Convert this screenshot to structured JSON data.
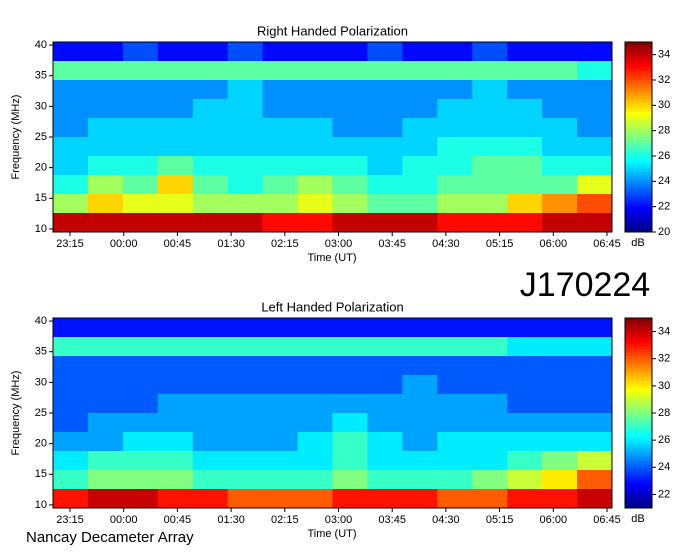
{
  "header": {
    "code": "J170224",
    "footer": "Nancay Decameter Array"
  },
  "chart_data": [
    {
      "type": "heatmap",
      "title": "Right Handed Polarization",
      "xlabel": "Time (UT)",
      "ylabel": "Frequency (MHz)",
      "colorbar_label": "dB",
      "xticks": [
        "23:15",
        "00:00",
        "00:45",
        "01:30",
        "02:15",
        "03:00",
        "03:45",
        "04:30",
        "05:15",
        "06:00",
        "06:45"
      ],
      "ylim": [
        9.5,
        40.5
      ],
      "yticks": [
        10,
        15,
        20,
        25,
        30,
        35,
        40
      ],
      "clim": [
        20,
        35
      ],
      "cticks": [
        20,
        22,
        24,
        26,
        28,
        30,
        32,
        34
      ],
      "z": [
        [
          22,
          22,
          23,
          22,
          22,
          23,
          22,
          22,
          22,
          23,
          22,
          22,
          23,
          22,
          22,
          22
        ],
        [
          27,
          27,
          27,
          27,
          27,
          27,
          27,
          27,
          27,
          27,
          27,
          27,
          27,
          27,
          27,
          26
        ],
        [
          24,
          24,
          24,
          24,
          24,
          25,
          24,
          24,
          24,
          24,
          24,
          24,
          25,
          24,
          24,
          24
        ],
        [
          24,
          24,
          24,
          24,
          25,
          25,
          24,
          24,
          24,
          24,
          24,
          25,
          25,
          25,
          24,
          24
        ],
        [
          24,
          25,
          25,
          25,
          25,
          25,
          25,
          25,
          24,
          24,
          25,
          25,
          25,
          25,
          25,
          24
        ],
        [
          25,
          25,
          25,
          25,
          25,
          25,
          25,
          25,
          25,
          25,
          25,
          26,
          26,
          26,
          25,
          25
        ],
        [
          25,
          26,
          26,
          27,
          26,
          26,
          26,
          26,
          26,
          25,
          26,
          26,
          27,
          27,
          26,
          26
        ],
        [
          26,
          28,
          27,
          30,
          27,
          26,
          27,
          28,
          27,
          26,
          26,
          27,
          27,
          27,
          27,
          29
        ],
        [
          28,
          30,
          29,
          29,
          28,
          28,
          28,
          29,
          28,
          27,
          27,
          28,
          28,
          30,
          31,
          32
        ],
        [
          34,
          34,
          34,
          34,
          34,
          34,
          33,
          33,
          34,
          34,
          34,
          33,
          33,
          33,
          34,
          34
        ]
      ]
    },
    {
      "type": "heatmap",
      "title": "Left Handed Polarization",
      "xlabel": "Time (UT)",
      "ylabel": "Frequency (MHz)",
      "colorbar_label": "dB",
      "xticks": [
        "23:15",
        "00:00",
        "00:45",
        "01:30",
        "02:15",
        "03:00",
        "03:45",
        "04:30",
        "05:15",
        "06:00",
        "06:45"
      ],
      "ylim": [
        9.5,
        40.5
      ],
      "yticks": [
        10,
        15,
        20,
        25,
        30,
        35,
        40
      ],
      "clim": [
        21,
        35
      ],
      "cticks": [
        22,
        24,
        26,
        28,
        30,
        32,
        34
      ],
      "z": [
        [
          23,
          23,
          23,
          23,
          23,
          23,
          23,
          23,
          23,
          23,
          23,
          23,
          23,
          23,
          23,
          23
        ],
        [
          27,
          27,
          27,
          27,
          27,
          27,
          27,
          27,
          27,
          27,
          27,
          27,
          27,
          26,
          26,
          26
        ],
        [
          24,
          24,
          24,
          24,
          24,
          24,
          24,
          24,
          24,
          24,
          24,
          24,
          24,
          24,
          24,
          24
        ],
        [
          24,
          24,
          24,
          24,
          24,
          24,
          24,
          24,
          24,
          24,
          25,
          24,
          24,
          24,
          24,
          24
        ],
        [
          24,
          24,
          24,
          25,
          25,
          25,
          25,
          25,
          25,
          25,
          25,
          25,
          25,
          24,
          24,
          24
        ],
        [
          24,
          25,
          25,
          25,
          25,
          25,
          25,
          25,
          26,
          25,
          25,
          25,
          25,
          25,
          25,
          25
        ],
        [
          25,
          25,
          26,
          26,
          25,
          25,
          25,
          26,
          27,
          26,
          25,
          26,
          26,
          26,
          26,
          26
        ],
        [
          26,
          27,
          27,
          27,
          26,
          26,
          26,
          26,
          27,
          26,
          26,
          26,
          26,
          27,
          28,
          29
        ],
        [
          27,
          28,
          28,
          28,
          27,
          27,
          27,
          27,
          28,
          27,
          27,
          27,
          28,
          29,
          30,
          32
        ],
        [
          33,
          34,
          34,
          33,
          33,
          32,
          32,
          32,
          33,
          33,
          33,
          32,
          32,
          33,
          33,
          34
        ]
      ]
    }
  ]
}
